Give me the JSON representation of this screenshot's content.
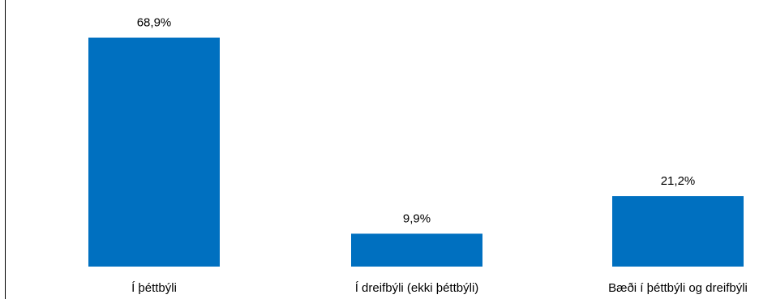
{
  "chart_data": {
    "type": "bar",
    "categories": [
      "Í þéttbýli",
      "Í dreifbýli (ekki þéttbýli)",
      "Bæði í þéttbýli og dreifbýli"
    ],
    "values": [
      68.9,
      9.9,
      21.2
    ],
    "value_labels": [
      "68,9%",
      "9,9%",
      "21,2%"
    ],
    "title": "",
    "xlabel": "",
    "ylabel": "",
    "ylim": [
      0,
      70
    ],
    "grid": false,
    "legend": "none",
    "bar_color": "#0070c0"
  }
}
